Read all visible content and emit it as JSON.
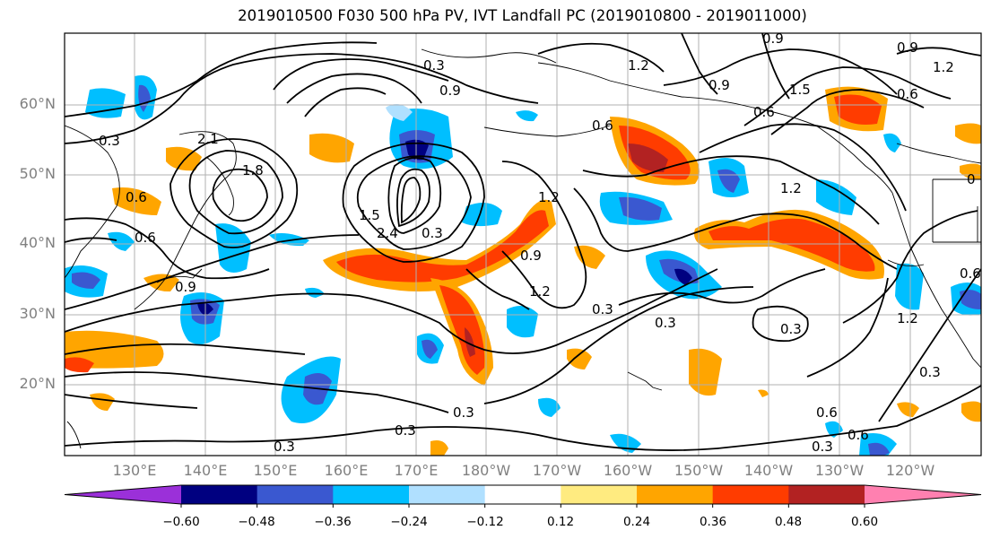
{
  "title": "2019010500 F030 500 hPa PV, IVT Landfall PC (2019010800 - 2019011000)",
  "map": {
    "lat_ticks": [
      "60°N",
      "50°N",
      "40°N",
      "30°N",
      "20°N"
    ],
    "lon_ticks": [
      "130°E",
      "140°E",
      "150°E",
      "160°E",
      "170°E",
      "180°W",
      "170°W",
      "160°W",
      "150°W",
      "140°W",
      "130°W",
      "120°W"
    ],
    "pv_contour_labels": [
      "0.3",
      "0.9",
      "1.2",
      "1.5",
      "1.8",
      "2.1",
      "2.4",
      "0.6"
    ]
  },
  "colorbar": {
    "ticks": [
      "−0.60",
      "−0.48",
      "−0.36",
      "−0.24",
      "−0.12",
      "0.12",
      "0.24",
      "0.36",
      "0.48",
      "0.60"
    ],
    "colors": [
      "#9b30d9",
      "#000080",
      "#3a58d0",
      "#00bfff",
      "#b0e0ff",
      "#ffffff",
      "#ffeb80",
      "#ffa500",
      "#ff3c00",
      "#b22222",
      "#ff80b0"
    ]
  },
  "colors": {
    "coast": "#000000",
    "grid": "#b0b0b0",
    "pv_contour": "#000000",
    "tick_label": "#808080"
  }
}
